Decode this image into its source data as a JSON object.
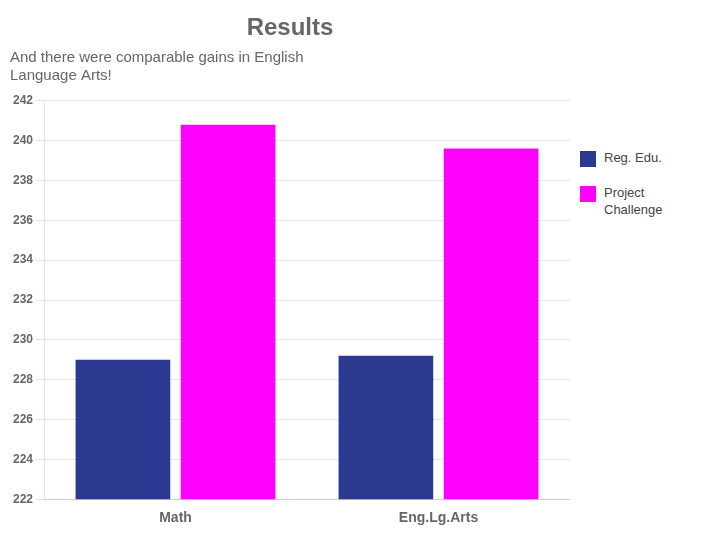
{
  "chart_data": {
    "type": "bar",
    "title": "Results",
    "subtitle": "And there were comparable gains in English\nLanguage Arts!",
    "categories": [
      "Math",
      "Eng.Lg.Arts"
    ],
    "series": [
      {
        "name": "Reg. Edu.",
        "color": "#2B3990",
        "values": [
          229.0,
          229.2
        ]
      },
      {
        "name": "Project\nChallenge",
        "color": "#FF00FF",
        "values": [
          240.8,
          239.6
        ]
      }
    ],
    "ylim": [
      222,
      242
    ],
    "yticks": [
      222,
      224,
      226,
      228,
      230,
      232,
      234,
      236,
      238,
      240,
      242
    ],
    "grid": true,
    "legend": "right"
  }
}
